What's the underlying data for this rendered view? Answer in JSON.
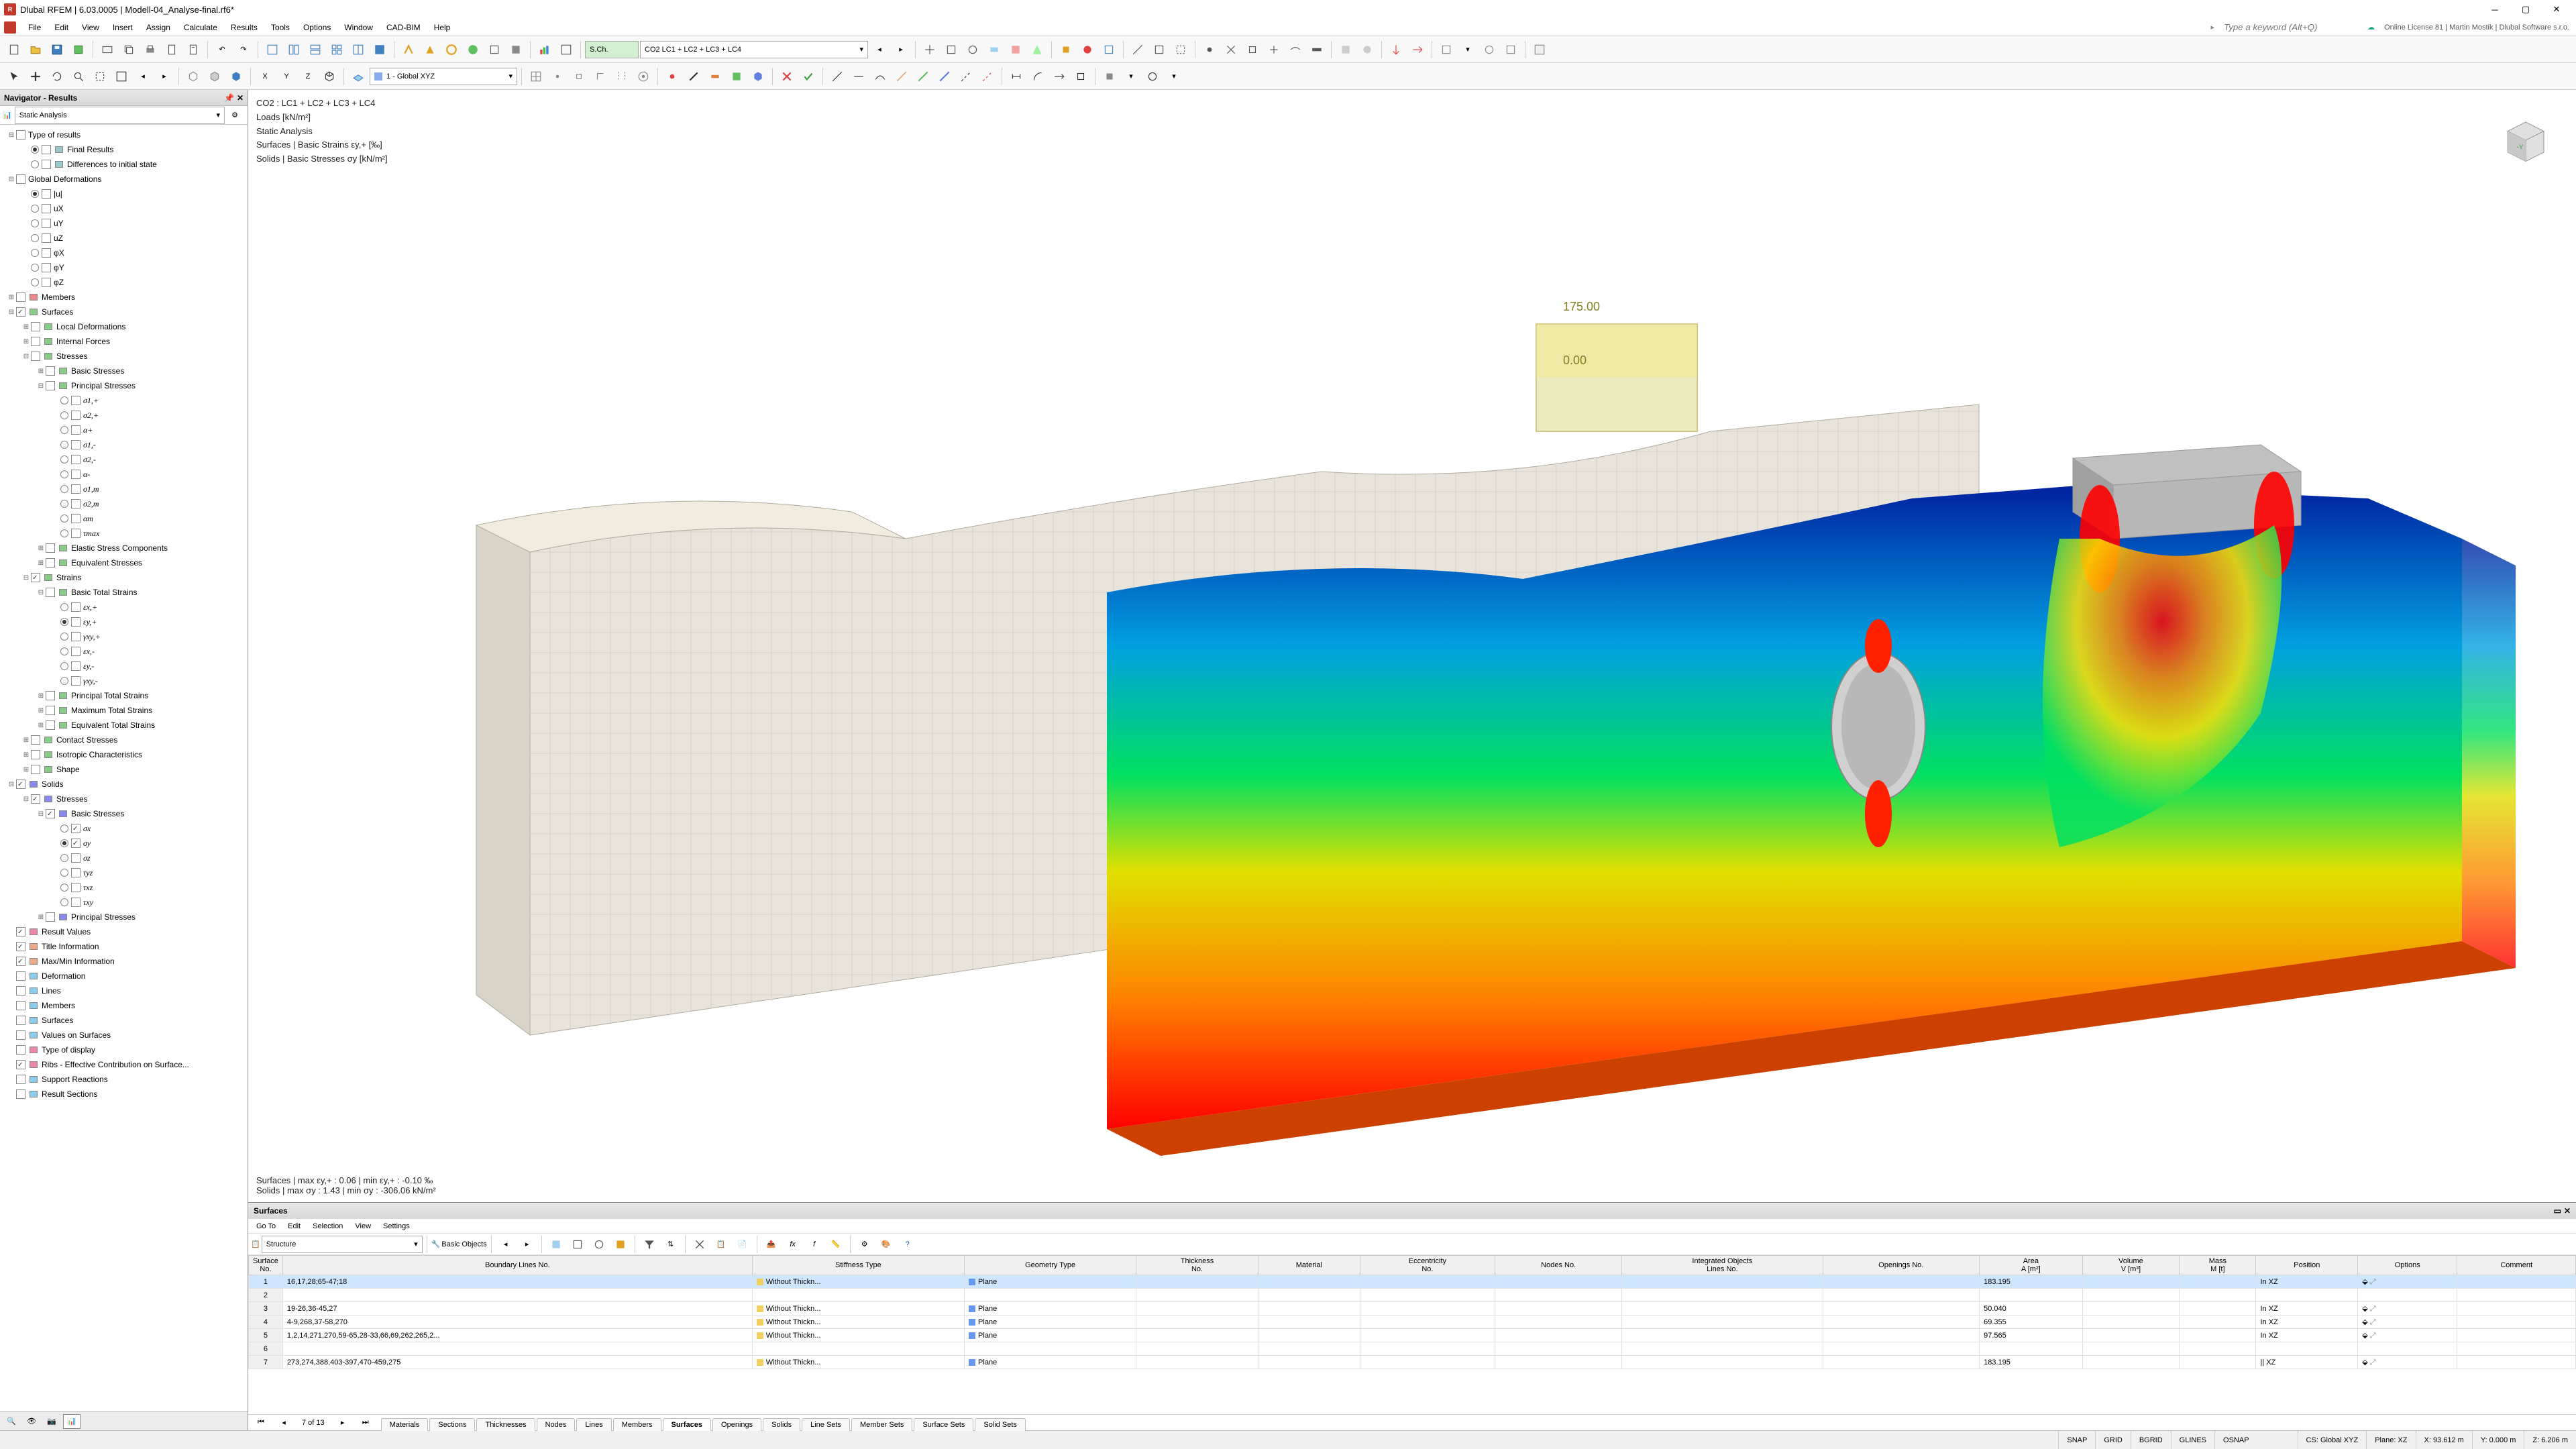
{
  "app": {
    "title": "Dlubal RFEM | 6.03.0005 | Modell-04_Analyse-final.rf6*",
    "search_placeholder": "Type a keyword (Alt+Q)",
    "license": "Online License 81 | Martin Mostik | Dlubal Software s.r.o."
  },
  "menubar": [
    "File",
    "Edit",
    "View",
    "Insert",
    "Assign",
    "Calculate",
    "Results",
    "Tools",
    "Options",
    "Window",
    "CAD-BIM",
    "Help"
  ],
  "toolbar1_combo": "CO2   LC1 + LC2 + LC3 + LC4",
  "toolbar1_combo_prefix": "S.Ch.",
  "toolbar2_combo": "1 - Global XYZ",
  "navigator": {
    "title": "Navigator - Results",
    "subcombo": "Static Analysis",
    "tree": [
      {
        "d": 0,
        "tw": "-",
        "cb": false,
        "lbl": "Type of results"
      },
      {
        "d": 1,
        "rb": true,
        "cb": false,
        "ic": "#9cc",
        "lbl": "Final Results"
      },
      {
        "d": 1,
        "rb": false,
        "cb": false,
        "ic": "#9cc",
        "lbl": "Differences to initial state"
      },
      {
        "d": 0,
        "tw": "-",
        "cb": false,
        "lbl": "Global Deformations"
      },
      {
        "d": 1,
        "rb": true,
        "cb": false,
        "lbl": "|u|"
      },
      {
        "d": 1,
        "rb": false,
        "cb": false,
        "lbl": "uX"
      },
      {
        "d": 1,
        "rb": false,
        "cb": false,
        "lbl": "uY"
      },
      {
        "d": 1,
        "rb": false,
        "cb": false,
        "lbl": "uZ"
      },
      {
        "d": 1,
        "rb": false,
        "cb": false,
        "lbl": "φX"
      },
      {
        "d": 1,
        "rb": false,
        "cb": false,
        "lbl": "φY"
      },
      {
        "d": 1,
        "rb": false,
        "cb": false,
        "lbl": "φZ"
      },
      {
        "d": 0,
        "tw": "+",
        "cb": false,
        "ic": "#e88",
        "lbl": "Members"
      },
      {
        "d": 0,
        "tw": "-",
        "cb": true,
        "ic": "#8c8",
        "lbl": "Surfaces"
      },
      {
        "d": 1,
        "tw": "+",
        "cb": false,
        "ic": "#8c8",
        "lbl": "Local Deformations"
      },
      {
        "d": 1,
        "tw": "+",
        "cb": false,
        "ic": "#8c8",
        "lbl": "Internal Forces"
      },
      {
        "d": 1,
        "tw": "-",
        "cb": false,
        "ic": "#8c8",
        "lbl": "Stresses"
      },
      {
        "d": 2,
        "tw": "+",
        "cb": false,
        "ic": "#8c8",
        "lbl": "Basic Stresses"
      },
      {
        "d": 2,
        "tw": "-",
        "cb": false,
        "ic": "#8c8",
        "lbl": "Principal Stresses"
      },
      {
        "d": 3,
        "rb": false,
        "cb": false,
        "sigma": true,
        "lbl": "σ1,+"
      },
      {
        "d": 3,
        "rb": false,
        "cb": false,
        "sigma": true,
        "lbl": "σ2,+"
      },
      {
        "d": 3,
        "rb": false,
        "cb": false,
        "sigma": true,
        "lbl": "α+"
      },
      {
        "d": 3,
        "rb": false,
        "cb": false,
        "sigma": true,
        "lbl": "σ1,-"
      },
      {
        "d": 3,
        "rb": false,
        "cb": false,
        "sigma": true,
        "lbl": "σ2,-"
      },
      {
        "d": 3,
        "rb": false,
        "cb": false,
        "sigma": true,
        "lbl": "α-"
      },
      {
        "d": 3,
        "rb": false,
        "cb": false,
        "sigma": true,
        "lbl": "σ1,m"
      },
      {
        "d": 3,
        "rb": false,
        "cb": false,
        "sigma": true,
        "lbl": "σ2,m"
      },
      {
        "d": 3,
        "rb": false,
        "cb": false,
        "sigma": true,
        "lbl": "αm"
      },
      {
        "d": 3,
        "rb": false,
        "cb": false,
        "sigma": true,
        "lbl": "τmax"
      },
      {
        "d": 2,
        "tw": "+",
        "cb": false,
        "ic": "#8c8",
        "lbl": "Elastic Stress Components"
      },
      {
        "d": 2,
        "tw": "+",
        "cb": false,
        "ic": "#8c8",
        "lbl": "Equivalent Stresses"
      },
      {
        "d": 1,
        "tw": "-",
        "cb": true,
        "ic": "#8c8",
        "lbl": "Strains"
      },
      {
        "d": 2,
        "tw": "-",
        "cb": false,
        "ic": "#8c8",
        "lbl": "Basic Total Strains"
      },
      {
        "d": 3,
        "rb": false,
        "cb": false,
        "sigma": true,
        "lbl": "εx,+"
      },
      {
        "d": 3,
        "rb": true,
        "cb": false,
        "sigma": true,
        "lbl": "εy,+"
      },
      {
        "d": 3,
        "rb": false,
        "cb": false,
        "sigma": true,
        "lbl": "γxy,+"
      },
      {
        "d": 3,
        "rb": false,
        "cb": false,
        "sigma": true,
        "lbl": "εx,-"
      },
      {
        "d": 3,
        "rb": false,
        "cb": false,
        "sigma": true,
        "lbl": "εy,-"
      },
      {
        "d": 3,
        "rb": false,
        "cb": false,
        "sigma": true,
        "lbl": "γxy,-"
      },
      {
        "d": 2,
        "tw": "+",
        "cb": false,
        "ic": "#8c8",
        "lbl": "Principal Total Strains"
      },
      {
        "d": 2,
        "tw": "+",
        "cb": false,
        "ic": "#8c8",
        "lbl": "Maximum Total Strains"
      },
      {
        "d": 2,
        "tw": "+",
        "cb": false,
        "ic": "#8c8",
        "lbl": "Equivalent Total Strains"
      },
      {
        "d": 1,
        "tw": "+",
        "cb": false,
        "ic": "#8c8",
        "lbl": "Contact Stresses"
      },
      {
        "d": 1,
        "tw": "+",
        "cb": false,
        "ic": "#8c8",
        "lbl": "Isotropic Characteristics"
      },
      {
        "d": 1,
        "tw": "+",
        "cb": false,
        "ic": "#8c8",
        "lbl": "Shape"
      },
      {
        "d": 0,
        "tw": "-",
        "cb": true,
        "ic": "#88e",
        "lbl": "Solids"
      },
      {
        "d": 1,
        "tw": "-",
        "cb": true,
        "ic": "#88e",
        "lbl": "Stresses"
      },
      {
        "d": 2,
        "tw": "-",
        "cb": true,
        "ic": "#88e",
        "lbl": "Basic Stresses"
      },
      {
        "d": 3,
        "rb": false,
        "cb": true,
        "sigma": true,
        "lbl": "σx"
      },
      {
        "d": 3,
        "rb": true,
        "cb": true,
        "sigma": true,
        "lbl": "σy"
      },
      {
        "d": 3,
        "rb": false,
        "cb": false,
        "sigma": true,
        "lbl": "σz"
      },
      {
        "d": 3,
        "rb": false,
        "cb": false,
        "sigma": true,
        "lbl": "τyz"
      },
      {
        "d": 3,
        "rb": false,
        "cb": false,
        "sigma": true,
        "lbl": "τxz"
      },
      {
        "d": 3,
        "rb": false,
        "cb": false,
        "sigma": true,
        "lbl": "τxy"
      },
      {
        "d": 2,
        "tw": "+",
        "cb": false,
        "ic": "#88e",
        "lbl": "Principal Stresses"
      },
      {
        "d": 0,
        "cb": true,
        "ic": "#e8a",
        "lbl": "Result Values"
      },
      {
        "d": 0,
        "cb": true,
        "ic": "#ea8",
        "lbl": "Title Information"
      },
      {
        "d": 0,
        "cb": true,
        "ic": "#ea8",
        "lbl": "Max/Min Information"
      },
      {
        "d": 0,
        "cb": false,
        "ic": "#8ce",
        "lbl": "Deformation"
      },
      {
        "d": 0,
        "cb": false,
        "ic": "#8ce",
        "lbl": "Lines"
      },
      {
        "d": 0,
        "cb": false,
        "ic": "#8ce",
        "lbl": "Members"
      },
      {
        "d": 0,
        "cb": false,
        "ic": "#8ce",
        "lbl": "Surfaces"
      },
      {
        "d": 0,
        "cb": false,
        "ic": "#8ce",
        "lbl": "Values on Surfaces"
      },
      {
        "d": 0,
        "cb": false,
        "ic": "#e8a",
        "lbl": "Type of display"
      },
      {
        "d": 0,
        "cb": true,
        "ic": "#e8a",
        "lbl": "Ribs - Effective Contribution on Surface..."
      },
      {
        "d": 0,
        "cb": false,
        "ic": "#8ce",
        "lbl": "Support Reactions"
      },
      {
        "d": 0,
        "cb": false,
        "ic": "#8ce",
        "lbl": "Result Sections"
      }
    ]
  },
  "overlay": {
    "line1": "CO2 : LC1 + LC2 + LC3 + LC4",
    "line2": "Loads [kN/m²]",
    "line3": "Static Analysis",
    "line4": "Surfaces | Basic Strains εy,+ [‰]",
    "line5": "Solids | Basic Stresses σy [kN/m²]",
    "bottom1": "Surfaces | max εy,+ : 0.06 | min εy,+ : -0.10 ‰",
    "bottom2": "Solids | max σy : 1.43 | min σy : -306.06 kN/m²"
  },
  "bottom": {
    "title": "Surfaces",
    "menu": [
      "Go To",
      "Edit",
      "Selection",
      "View",
      "Settings"
    ],
    "structure_label": "Structure",
    "basic_objects": "Basic Objects",
    "nav_text": "7 of 13",
    "columns": [
      "Surface\nNo.",
      "Boundary Lines No.",
      "Stiffness Type",
      "Geometry Type",
      "Thickness\nNo.",
      "Material",
      "Eccentricity\nNo.",
      "Nodes No.",
      "Integrated Objects\nLines No.",
      "Openings No.",
      "Area\nA [m²]",
      "Volume\nV [m³]",
      "Mass\nM [t]",
      "Position",
      "Options",
      "Comment"
    ],
    "rows": [
      {
        "n": 1,
        "bl": "16,17,28;65-47;18",
        "st": "Without Thickn...",
        "stc": "#f0d060",
        "gt": "Plane",
        "gtc": "#6699ee",
        "area": "183.195",
        "pos": "In XZ",
        "sel": true
      },
      {
        "n": 2,
        "bl": "",
        "st": "",
        "gt": "",
        "area": "",
        "pos": ""
      },
      {
        "n": 3,
        "bl": "19-26,36-45,27",
        "st": "Without Thickn...",
        "stc": "#f0d060",
        "gt": "Plane",
        "gtc": "#6699ee",
        "area": "50.040",
        "pos": "In XZ"
      },
      {
        "n": 4,
        "bl": "4-9,268,37-58,270",
        "st": "Without Thickn...",
        "stc": "#f0d060",
        "gt": "Plane",
        "gtc": "#6699ee",
        "area": "69.355",
        "pos": "In XZ"
      },
      {
        "n": 5,
        "bl": "1,2,14,271,270,59-65,28-33,66,69,262,265,2...",
        "st": "Without Thickn...",
        "stc": "#f0d060",
        "gt": "Plane",
        "gtc": "#6699ee",
        "area": "97.565",
        "pos": "In XZ"
      },
      {
        "n": 6,
        "bl": "",
        "st": "",
        "gt": "",
        "area": "",
        "pos": ""
      },
      {
        "n": 7,
        "bl": "273,274,388,403-397,470-459,275",
        "st": "Without Thickn...",
        "stc": "#f0d060",
        "gt": "Plane",
        "gtc": "#6699ee",
        "area": "183.195",
        "pos": "|| XZ"
      }
    ],
    "tabs": [
      "Materials",
      "Sections",
      "Thicknesses",
      "Nodes",
      "Lines",
      "Members",
      "Surfaces",
      "Openings",
      "Solids",
      "Line Sets",
      "Member Sets",
      "Surface Sets",
      "Solid Sets"
    ],
    "active_tab": "Surfaces"
  },
  "statusbar": {
    "snap": "SNAP",
    "grid": "GRID",
    "bgrid": "BGRID",
    "glines": "GLINES",
    "osnap": "OSNAP",
    "cs": "CS: Global XYZ",
    "plane": "Plane: XZ",
    "x": "X: 93.612 m",
    "y": "Y: 0.000 m",
    "z": "Z: 6.206 m"
  }
}
